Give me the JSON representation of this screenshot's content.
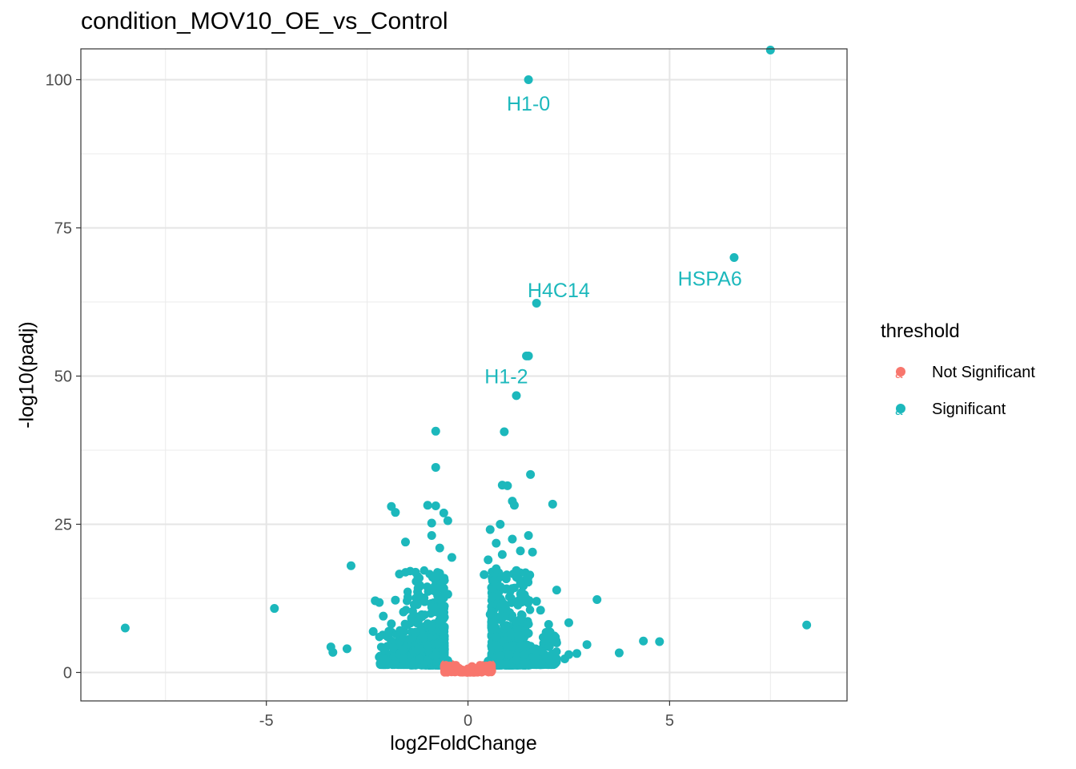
{
  "chart_data": {
    "type": "scatter",
    "title": "condition_MOV10_OE_vs_Control",
    "xlabel": "log2FoldChange",
    "ylabel": "-log10(padj)",
    "xlim": [
      -9.6,
      9.4
    ],
    "ylim": [
      -4.8,
      105.2
    ],
    "xticks": [
      "-5",
      "0",
      "5"
    ],
    "xtick_values": [
      -5,
      0,
      5
    ],
    "yticks": [
      "0",
      "25",
      "50",
      "75",
      "100"
    ],
    "ytick_values": [
      0,
      25,
      50,
      75,
      100
    ],
    "grid": true,
    "legend": {
      "title": "threshold",
      "position": "right",
      "entries": [
        {
          "label": "Not Significant",
          "color": "#F8766D"
        },
        {
          "label": "Significant",
          "color": "#00BFC4"
        }
      ]
    },
    "colors": {
      "not_significant": "#F8766D",
      "significant": "#1CB8BC"
    },
    "series": [
      {
        "name": "Significant",
        "color": "#1CB8BC",
        "points": [
          [
            7.5,
            105.0
          ],
          [
            1.5,
            100.0
          ],
          [
            6.6,
            70.0
          ],
          [
            1.7,
            62.3
          ],
          [
            1.45,
            53.4
          ],
          [
            1.5,
            53.4
          ],
          [
            1.2,
            46.7
          ],
          [
            -0.8,
            40.7
          ],
          [
            0.9,
            40.6
          ],
          [
            -0.8,
            34.6
          ],
          [
            1.55,
            33.4
          ],
          [
            0.85,
            31.6
          ],
          [
            0.98,
            31.5
          ],
          [
            2.1,
            28.4
          ],
          [
            -1.9,
            28.0
          ],
          [
            -1.0,
            28.2
          ],
          [
            -0.8,
            28.1
          ],
          [
            -0.6,
            26.9
          ],
          [
            1.1,
            28.9
          ],
          [
            1.15,
            28.2
          ],
          [
            -1.8,
            27.0
          ],
          [
            -0.5,
            25.6
          ],
          [
            -0.9,
            25.2
          ],
          [
            0.8,
            25.0
          ],
          [
            0.55,
            24.1
          ],
          [
            1.5,
            23.1
          ],
          [
            -0.9,
            23.1
          ],
          [
            1.1,
            22.5
          ],
          [
            -1.55,
            22.0
          ],
          [
            0.7,
            21.8
          ],
          [
            -0.7,
            21.0
          ],
          [
            1.3,
            20.5
          ],
          [
            1.6,
            20.3
          ],
          [
            0.85,
            19.9
          ],
          [
            -0.4,
            19.4
          ],
          [
            0.5,
            19.0
          ],
          [
            -2.9,
            18.0
          ],
          [
            0.7,
            17.5
          ],
          [
            1.2,
            17.2
          ],
          [
            -1.3,
            16.9
          ],
          [
            -1.7,
            16.6
          ],
          [
            -0.8,
            16.1
          ],
          [
            0.4,
            16.5
          ],
          [
            0.95,
            15.8
          ],
          [
            1.3,
            15.0
          ],
          [
            -1.2,
            14.5
          ],
          [
            -0.6,
            14.2
          ],
          [
            0.6,
            14.0
          ],
          [
            2.2,
            13.9
          ],
          [
            -1.25,
            13.6
          ],
          [
            -0.5,
            13.2
          ],
          [
            1.4,
            13.1
          ],
          [
            0.6,
            12.8
          ],
          [
            -2.3,
            12.1
          ],
          [
            -2.2,
            11.8
          ],
          [
            -1.8,
            12.2
          ],
          [
            3.2,
            12.3
          ],
          [
            1.7,
            12.0
          ],
          [
            -4.8,
            10.8
          ],
          [
            -0.9,
            11.0
          ],
          [
            0.9,
            11.5
          ],
          [
            1.8,
            10.5
          ],
          [
            -1.6,
            10.2
          ],
          [
            -2.1,
            9.5
          ],
          [
            0.55,
            9.8
          ],
          [
            -1.4,
            9.2
          ],
          [
            1.3,
            9.0
          ],
          [
            -0.7,
            8.8
          ],
          [
            1.2,
            8.6
          ],
          [
            -1.9,
            8.2
          ],
          [
            -1.5,
            8.0
          ],
          [
            2.0,
            8.1
          ],
          [
            2.5,
            8.4
          ],
          [
            -8.5,
            7.5
          ],
          [
            8.4,
            8.0
          ],
          [
            -0.9,
            7.6
          ],
          [
            0.9,
            7.4
          ],
          [
            -2.35,
            6.9
          ],
          [
            -1.3,
            6.8
          ],
          [
            1.5,
            6.6
          ],
          [
            -0.6,
            6.3
          ],
          [
            0.7,
            6.0
          ],
          [
            -1.1,
            5.9
          ],
          [
            1.9,
            5.5
          ],
          [
            -1.9,
            5.3
          ],
          [
            4.35,
            5.3
          ],
          [
            4.75,
            5.2
          ],
          [
            2.2,
            5.0
          ],
          [
            2.95,
            4.7
          ],
          [
            -1.0,
            4.6
          ],
          [
            1.1,
            4.5
          ],
          [
            -3.4,
            4.3
          ],
          [
            -3.0,
            4.0
          ],
          [
            -1.6,
            3.9
          ],
          [
            -1.85,
            4.2
          ],
          [
            -3.35,
            3.4
          ],
          [
            1.7,
            3.6
          ],
          [
            3.75,
            3.3
          ],
          [
            2.7,
            3.2
          ],
          [
            2.5,
            3.0
          ],
          [
            -1.7,
            3.1
          ],
          [
            1.4,
            3.0
          ],
          [
            -0.8,
            2.9
          ],
          [
            0.8,
            2.8
          ],
          [
            -2.2,
            2.6
          ],
          [
            -2.1,
            2.4
          ],
          [
            -1.6,
            2.4
          ],
          [
            2.4,
            2.3
          ],
          [
            -1.2,
            2.2
          ],
          [
            1.2,
            2.1
          ],
          [
            -0.5,
            2.0
          ],
          [
            0.5,
            1.9
          ]
        ]
      },
      {
        "name": "Not Significant",
        "color": "#F8766D",
        "points": [
          [
            -0.55,
            1.2
          ],
          [
            -0.45,
            1.1
          ],
          [
            -0.35,
            0.9
          ],
          [
            -0.25,
            0.6
          ],
          [
            -0.15,
            0.35
          ],
          [
            -0.05,
            0.1
          ],
          [
            0.05,
            0.1
          ],
          [
            0.15,
            0.35
          ],
          [
            0.25,
            0.6
          ],
          [
            0.35,
            0.9
          ],
          [
            0.45,
            1.1
          ],
          [
            0.55,
            1.2
          ],
          [
            -0.5,
            0.8
          ],
          [
            0.5,
            0.8
          ],
          [
            -0.3,
            1.2
          ],
          [
            0.3,
            1.2
          ],
          [
            0.0,
            0.6
          ],
          [
            0.1,
            1.0
          ]
        ]
      }
    ],
    "labels": [
      {
        "text": "H1-0",
        "x": 1.5,
        "y": 96.0
      },
      {
        "text": "HSPA6",
        "x": 6.0,
        "y": 66.5
      },
      {
        "text": "H4C14",
        "x": 2.25,
        "y": 64.5
      },
      {
        "text": "H1-2",
        "x": 0.95,
        "y": 50.0
      }
    ]
  }
}
